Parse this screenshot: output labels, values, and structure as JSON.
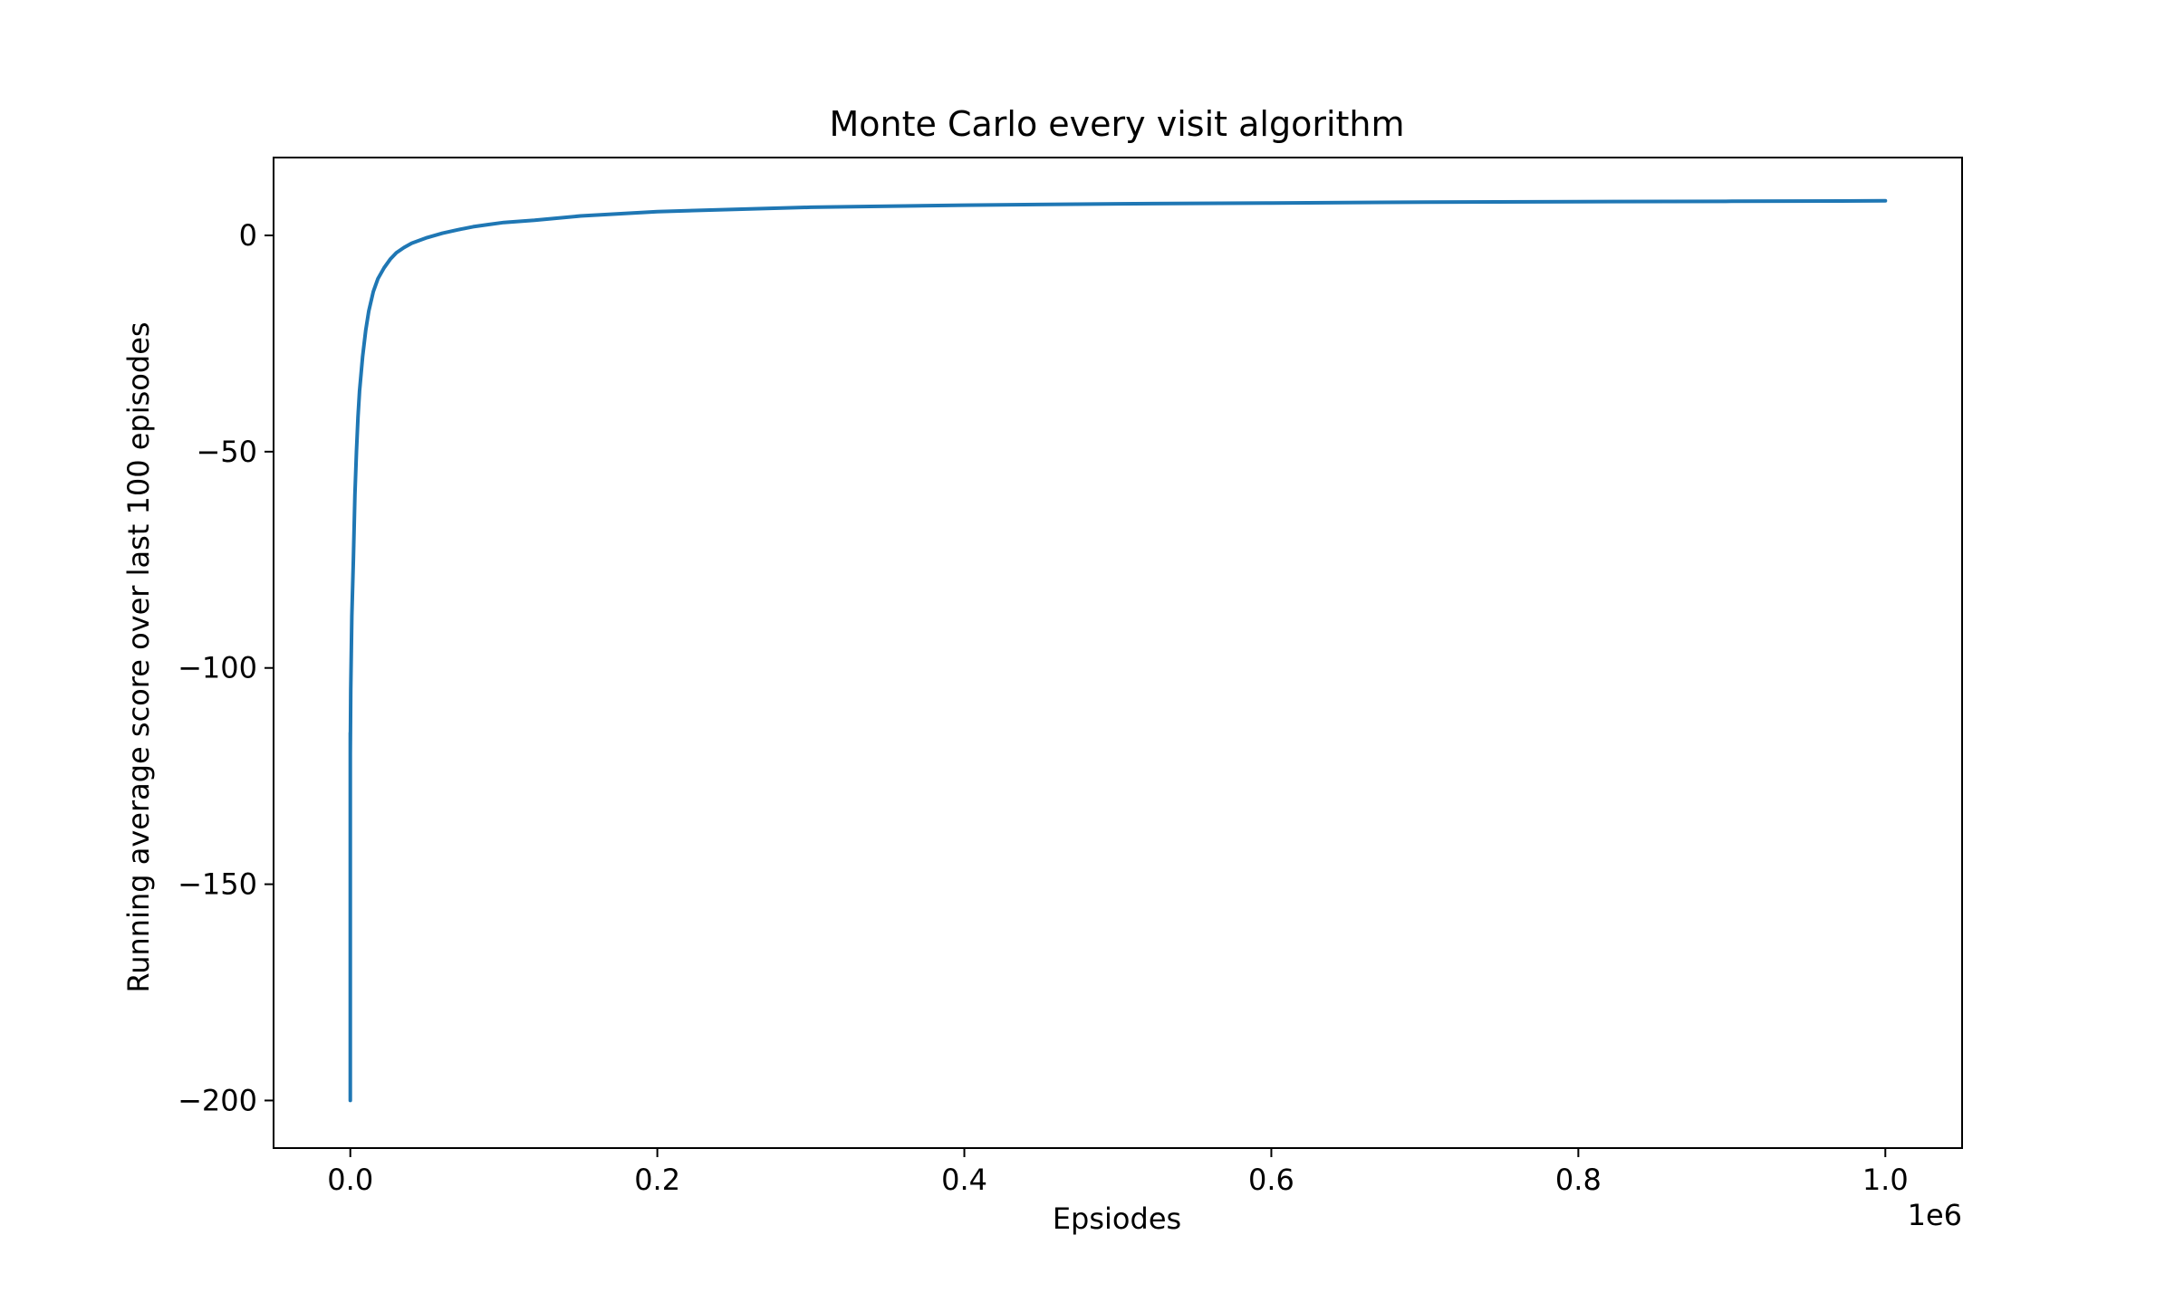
{
  "chart_data": {
    "type": "line",
    "title": "Monte Carlo every visit algorithm",
    "xlabel": "Epsiodes",
    "ylabel": "Running average score over last 100 episodes",
    "x_offset_text": "1e6",
    "xlim": [
      -0.05,
      1.05
    ],
    "ylim": [
      -211,
      18
    ],
    "x_ticks": [
      0.0,
      0.2,
      0.4,
      0.6,
      0.8,
      1.0
    ],
    "x_tick_labels": [
      "0.0",
      "0.2",
      "0.4",
      "0.6",
      "0.8",
      "1.0"
    ],
    "y_ticks": [
      0,
      -50,
      -100,
      -150,
      -200
    ],
    "y_tick_labels": [
      "0",
      "−50",
      "−100",
      "−150",
      "−200"
    ],
    "grid": false,
    "legend": "none",
    "series": [
      {
        "color": "#1f77b4",
        "x": [
          0.0,
          0.0,
          0.0,
          0.0,
          0.0003,
          0.001,
          0.002,
          0.003,
          0.004,
          0.005,
          0.006,
          0.008,
          0.01,
          0.012,
          0.015,
          0.018,
          0.022,
          0.026,
          0.03,
          0.035,
          0.04,
          0.05,
          0.06,
          0.07,
          0.08,
          0.09,
          0.1,
          0.12,
          0.15,
          0.2,
          0.25,
          0.3,
          0.4,
          0.5,
          0.6,
          0.7,
          0.8,
          0.9,
          1.0
        ],
        "y": [
          -200,
          -130,
          -115,
          -120,
          -105,
          -88,
          -75,
          -60,
          -50,
          -42,
          -36,
          -28,
          -22,
          -17.5,
          -13,
          -10,
          -7.5,
          -5.5,
          -4,
          -2.8,
          -1.8,
          -0.5,
          0.5,
          1.3,
          2.0,
          2.5,
          3.0,
          3.5,
          4.5,
          5.5,
          6.0,
          6.5,
          7.0,
          7.3,
          7.5,
          7.7,
          7.8,
          7.9,
          8.0
        ]
      }
    ]
  }
}
